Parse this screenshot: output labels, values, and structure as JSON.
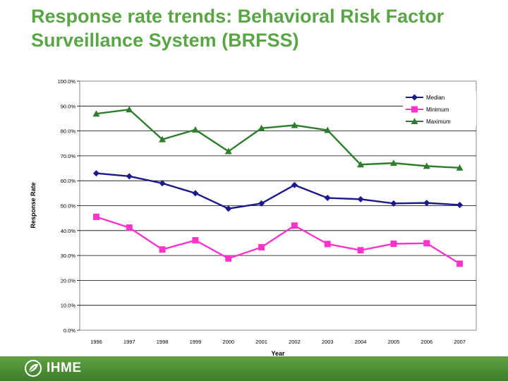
{
  "slide": {
    "title": "Response rate trends: Behavioral Risk Factor Surveillance System (BRFSS)",
    "logo_text": "IHME"
  },
  "colors": {
    "title": "#5aa646",
    "median": "#1a1a8c",
    "minimum": "#ff33cc",
    "maximum": "#2e7d2e",
    "footer": "#4f9a3a"
  },
  "chart_data": {
    "type": "line",
    "title": "",
    "xlabel": "Year",
    "ylabel": "Response Rate",
    "ylim": [
      0,
      100
    ],
    "yticks": [
      "0.0%",
      "10.0%",
      "20.0%",
      "30.0%",
      "40.0%",
      "50.0%",
      "60.0%",
      "70.0%",
      "80.0%",
      "90.0%",
      "100.0%"
    ],
    "grid": true,
    "legend_position": "top-right",
    "categories": [
      "1996",
      "1997",
      "1998",
      "1999",
      "2000",
      "2001",
      "2002",
      "2003",
      "2004",
      "2005",
      "2006",
      "2007"
    ],
    "series": [
      {
        "name": "Median",
        "key": "median",
        "marker": "diamond",
        "values": [
          63.0,
          61.8,
          59.0,
          55.0,
          48.8,
          50.9,
          58.3,
          53.1,
          52.6,
          50.9,
          51.1,
          50.3
        ]
      },
      {
        "name": "Minimum",
        "key": "minimum",
        "marker": "square",
        "values": [
          45.5,
          41.2,
          32.4,
          36.1,
          28.8,
          33.3,
          42.0,
          34.6,
          32.1,
          34.7,
          34.9,
          26.7
        ]
      },
      {
        "name": "Maximum",
        "key": "maximum",
        "marker": "triangle",
        "values": [
          86.9,
          88.6,
          76.6,
          80.5,
          71.8,
          81.1,
          82.3,
          80.3,
          66.5,
          67.1,
          65.9,
          65.2
        ]
      }
    ]
  }
}
